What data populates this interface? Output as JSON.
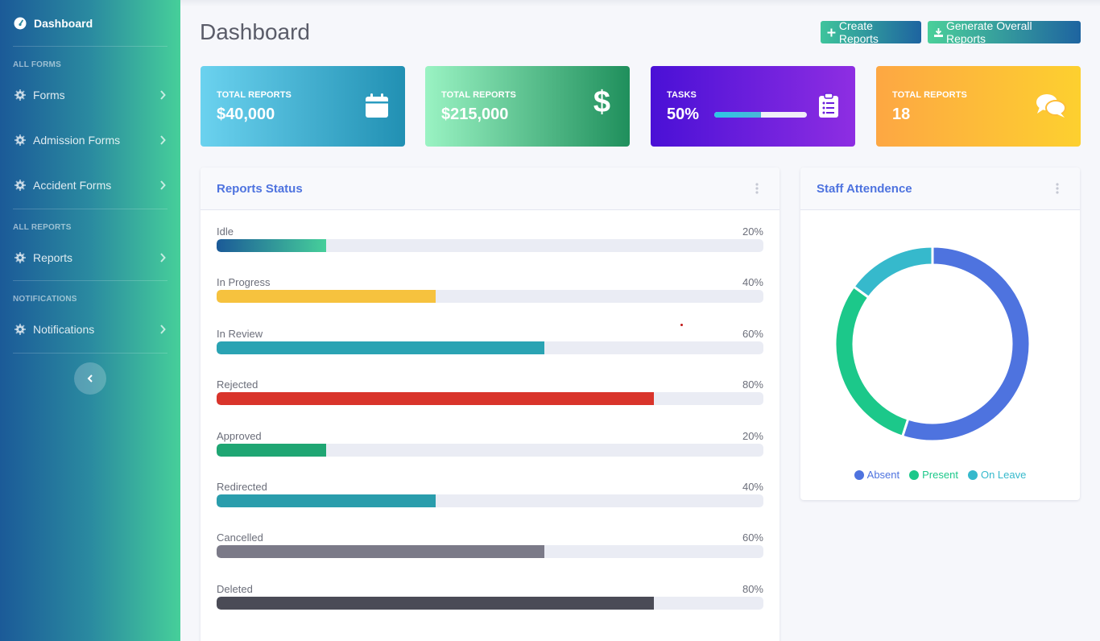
{
  "sidebar": {
    "brand": "Dashboard",
    "sections": [
      {
        "heading": "ALL FORMS",
        "items": [
          "Forms",
          "Admission Forms",
          "Accident Forms"
        ]
      },
      {
        "heading": "ALL REPORTS",
        "items": [
          "Reports"
        ]
      },
      {
        "heading": "NOTIFICATIONS",
        "items": [
          "Notifications"
        ]
      }
    ]
  },
  "header": {
    "title": "Dashboard",
    "create_label": "Create Reports",
    "generate_label": "Generate Overall Reports"
  },
  "cards": [
    {
      "title": "TOTAL REPORTS",
      "value": "$40,000",
      "icon": "calendar-icon"
    },
    {
      "title": "TOTAL REPORTS",
      "value": "$215,000",
      "icon": "dollar-icon"
    },
    {
      "title": "TASKS",
      "value": "50%",
      "icon": "clipboard-list-icon",
      "progress": 0.5
    },
    {
      "title": "TOTAL REPORTS",
      "value": "18",
      "icon": "comments-icon"
    }
  ],
  "reports_status": {
    "title": "Reports Status",
    "rows": [
      {
        "label": "Idle",
        "percent_text": "20%",
        "value": 0.2,
        "color": "#1b5a98",
        "color2": "#46cf9a"
      },
      {
        "label": "In Progress",
        "percent_text": "40%",
        "value": 0.4,
        "color": "#f6c23e"
      },
      {
        "label": "In Review",
        "percent_text": "60%",
        "value": 0.6,
        "color": "#2aa3b3"
      },
      {
        "label": "Rejected",
        "percent_text": "80%",
        "value": 0.8,
        "color": "#d9342b"
      },
      {
        "label": "Approved",
        "percent_text": "20%",
        "value": 0.2,
        "color": "#1fa673"
      },
      {
        "label": "Redirected",
        "percent_text": "40%",
        "value": 0.4,
        "color": "#2a9dac"
      },
      {
        "label": "Cancelled",
        "percent_text": "60%",
        "value": 0.6,
        "color": "#7b7a88"
      },
      {
        "label": "Deleted",
        "percent_text": "80%",
        "value": 0.8,
        "color": "#4a4b56"
      }
    ]
  },
  "staff_attendance": {
    "title": "Staff Attendence"
  },
  "chart_data": {
    "type": "pie",
    "categories": [
      "Absent",
      "Present",
      "On Leave"
    ],
    "values": [
      55,
      30,
      15
    ],
    "colors": [
      "#4e73df",
      "#1cc88a",
      "#36b9cc"
    ],
    "legend": "bottom"
  }
}
